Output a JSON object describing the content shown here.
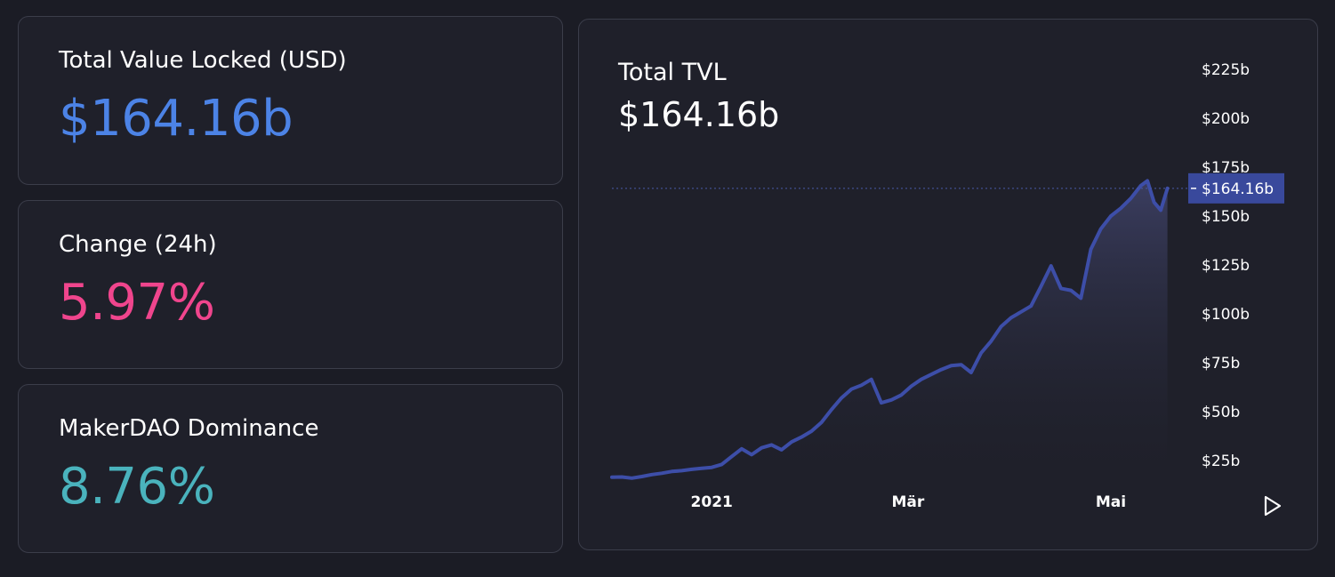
{
  "stats": {
    "tvl": {
      "label": "Total Value Locked (USD)",
      "value": "$164.16b"
    },
    "change": {
      "label": "Change (24h)",
      "value": "5.97%"
    },
    "dominance": {
      "label": "MakerDAO Dominance",
      "value": "8.76%"
    }
  },
  "chart": {
    "title": "Total TVL",
    "current_value": "$164.16b",
    "play_icon": "play-icon"
  },
  "colors": {
    "tvl_value": "#4c83e6",
    "change_value": "#f0458d",
    "dominance_value": "#4ab3bd",
    "line": "#3d4ea8",
    "price_tag": "#39499c"
  },
  "chart_data": {
    "type": "area",
    "title": "Total TVL",
    "x_tick_labels": [
      "2021",
      "Mär",
      "Mai"
    ],
    "x_ticks": [
      "2021-01-01",
      "2021-03-01",
      "2021-05-01"
    ],
    "y_tick_labels": [
      "$25b",
      "$50b",
      "$75b",
      "$100b",
      "$125b",
      "$150b",
      "$175b",
      "$200b",
      "$225b"
    ],
    "y_ticks": [
      25,
      50,
      75,
      100,
      125,
      150,
      175,
      200,
      225
    ],
    "ylim": [
      16,
      238
    ],
    "xlim": [
      "2020-12-02",
      "2021-05-24"
    ],
    "last_value_label": "$164.16b",
    "last_value": 164.16,
    "series": [
      {
        "x": [
          "2020-12-02",
          "2020-12-05",
          "2020-12-08",
          "2020-12-11",
          "2020-12-14",
          "2020-12-17",
          "2020-12-20",
          "2020-12-23",
          "2020-12-26",
          "2020-12-29",
          "2021-01-01",
          "2021-01-04",
          "2021-01-07",
          "2021-01-10",
          "2021-01-13",
          "2021-01-16",
          "2021-01-19",
          "2021-01-22",
          "2021-01-25",
          "2021-01-28",
          "2021-01-31",
          "2021-02-03",
          "2021-02-06",
          "2021-02-09",
          "2021-02-12",
          "2021-02-15",
          "2021-02-18",
          "2021-02-21",
          "2021-02-24",
          "2021-02-27",
          "2021-03-02",
          "2021-03-05",
          "2021-03-08",
          "2021-03-11",
          "2021-03-14",
          "2021-03-17",
          "2021-03-20",
          "2021-03-23",
          "2021-03-26",
          "2021-03-29",
          "2021-04-01",
          "2021-04-04",
          "2021-04-07",
          "2021-04-10",
          "2021-04-13",
          "2021-04-16",
          "2021-04-19",
          "2021-04-22",
          "2021-04-25",
          "2021-04-28",
          "2021-05-01",
          "2021-05-04",
          "2021-05-07",
          "2021-05-10",
          "2021-05-12",
          "2021-05-14",
          "2021-05-16",
          "2021-05-18"
        ],
        "y": [
          16.5,
          16.6,
          16.0,
          16.8,
          17.8,
          18.5,
          19.4,
          19.8,
          20.5,
          21.0,
          21.5,
          23.0,
          27.0,
          31.0,
          28.0,
          31.5,
          33.0,
          30.5,
          34.5,
          37.0,
          40.0,
          44.5,
          51.0,
          57.0,
          61.5,
          63.5,
          66.5,
          54.5,
          56.0,
          58.5,
          63.0,
          66.5,
          69.0,
          71.5,
          73.5,
          74.0,
          70.0,
          80.0,
          86.0,
          93.5,
          98.0,
          101.0,
          104.0,
          114.0,
          124.5,
          113.0,
          112.0,
          108.0,
          133.0,
          143.5,
          150.0,
          154.0,
          159.0,
          165.5,
          168.0,
          157.0,
          153.0,
          164.16
        ]
      }
    ]
  }
}
